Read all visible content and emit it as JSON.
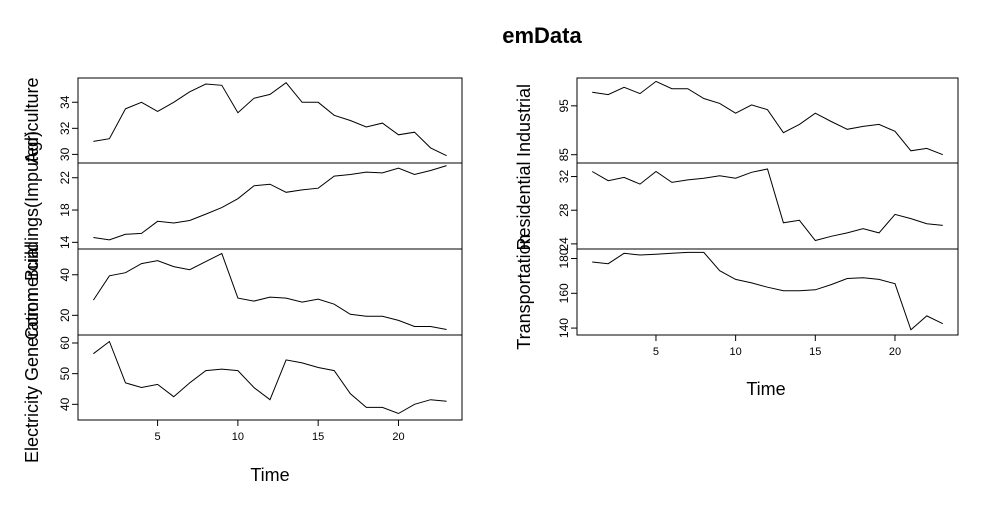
{
  "chart_data": {
    "type": "line",
    "title": "emData",
    "xlabel": "Time",
    "x": [
      1,
      2,
      3,
      4,
      5,
      6,
      7,
      8,
      9,
      10,
      11,
      12,
      13,
      14,
      15,
      16,
      17,
      18,
      19,
      20,
      21,
      22,
      23
    ],
    "xlim": [
      1,
      23
    ],
    "xticks": [
      "5",
      "10",
      "15",
      "20"
    ],
    "xtick_values": [
      5,
      10,
      15,
      20
    ],
    "panels": [
      {
        "name": "Agriculture",
        "column": "left",
        "ylim": [
          29.6,
          35.6
        ],
        "yticks": [
          "30",
          "32",
          "34"
        ],
        "ytick_values": [
          30,
          32,
          34
        ],
        "values": [
          31.0,
          31.2,
          33.5,
          34.0,
          33.3,
          34.0,
          34.8,
          35.4,
          35.3,
          33.2,
          34.3,
          34.6,
          35.5,
          34.0,
          34.0,
          33.0,
          32.6,
          32.1,
          32.4,
          31.5,
          31.7,
          30.5,
          29.9
        ]
      },
      {
        "name": "Buildings(Imputed)",
        "column": "left",
        "ylim": [
          13.6,
          23.4
        ],
        "yticks": [
          "14",
          "18",
          "22"
        ],
        "ytick_values": [
          14,
          18,
          22
        ],
        "values": [
          14.6,
          14.3,
          15.0,
          15.1,
          16.6,
          16.4,
          16.7,
          17.5,
          18.3,
          19.4,
          21.0,
          21.2,
          20.2,
          20.5,
          20.7,
          22.2,
          22.4,
          22.7,
          22.6,
          23.2,
          22.4,
          22.9,
          23.5
        ]
      },
      {
        "name": "Commercial",
        "column": "left",
        "ylim": [
          12,
          51
        ],
        "yticks": [
          "20",
          "40"
        ],
        "ytick_values": [
          20,
          40
        ],
        "values": [
          27.5,
          39.5,
          41.0,
          45.5,
          47.0,
          44.0,
          42.5,
          46.5,
          50.5,
          28.5,
          27.0,
          29.0,
          28.5,
          26.5,
          28.0,
          25.5,
          20.5,
          19.5,
          19.5,
          17.5,
          14.5,
          14.5,
          13.0
        ]
      },
      {
        "name": "Electricity Generation",
        "column": "left",
        "ylim": [
          36,
          61.5
        ],
        "yticks": [
          "40",
          "50",
          "60"
        ],
        "ytick_values": [
          40,
          50,
          60
        ],
        "values": [
          56.5,
          60.5,
          47.0,
          45.5,
          46.5,
          42.5,
          47.0,
          51.0,
          51.5,
          51.0,
          45.5,
          41.5,
          54.5,
          53.5,
          52.0,
          51.0,
          43.5,
          39.0,
          39.0,
          37.0,
          40.0,
          41.5,
          41.0
        ]
      },
      {
        "name": "Industrial",
        "column": "right",
        "ylim": [
          84,
          100
        ],
        "yticks": [
          "85",
          "95"
        ],
        "ytick_values": [
          85,
          95
        ],
        "values": [
          97.8,
          97.3,
          98.8,
          97.5,
          100.0,
          98.5,
          98.5,
          96.5,
          95.5,
          93.5,
          95.2,
          94.2,
          89.5,
          91.2,
          93.5,
          91.8,
          90.2,
          90.8,
          91.2,
          89.8,
          85.8,
          86.3,
          85.0
        ]
      },
      {
        "name": "Residential",
        "column": "right",
        "ylim": [
          23.8,
          33.2
        ],
        "yticks": [
          "24",
          "28",
          "32"
        ],
        "ytick_values": [
          24,
          28,
          32
        ],
        "values": [
          32.6,
          31.5,
          31.9,
          31.1,
          32.6,
          31.3,
          31.6,
          31.8,
          32.1,
          31.8,
          32.5,
          32.9,
          26.5,
          26.8,
          24.4,
          24.9,
          25.3,
          25.8,
          25.3,
          27.5,
          27.0,
          26.4,
          26.2
        ]
      },
      {
        "name": "Transportation",
        "column": "right",
        "ylim": [
          138,
          183.5
        ],
        "yticks": [
          "140",
          "160",
          "180"
        ],
        "ytick_values": [
          140,
          160,
          180
        ],
        "values": [
          178.0,
          177.0,
          183.0,
          182.0,
          182.5,
          183.0,
          183.5,
          183.5,
          173.0,
          168.0,
          166.0,
          163.5,
          161.5,
          161.5,
          162.0,
          165.0,
          168.5,
          169.0,
          168.0,
          165.5,
          139.0,
          147.0,
          142.5
        ]
      }
    ]
  }
}
